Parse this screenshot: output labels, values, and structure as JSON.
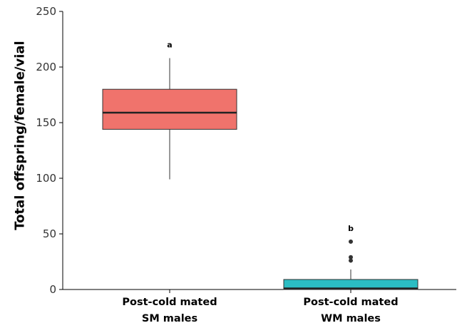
{
  "chart_data": {
    "type": "box",
    "ylabel": "Total offspring/female/vial",
    "xlabel": "",
    "ylim": [
      0,
      250
    ],
    "yticks": [
      0,
      50,
      100,
      150,
      200,
      250
    ],
    "grid": false,
    "legend": "none",
    "groups": [
      {
        "category_lines": [
          "Post-cold mated",
          "SM males"
        ],
        "whisker_low": 99,
        "q1": 144,
        "median": 159,
        "q3": 180,
        "whisker_high": 208,
        "outliers": [],
        "sig_label": "a",
        "color": "#F0736C"
      },
      {
        "category_lines": [
          "Post-cold mated",
          "WM males"
        ],
        "whisker_low": 0,
        "q1": 0,
        "median": 1,
        "q3": 9,
        "whisker_high": 18,
        "outliers": [
          26,
          29,
          43
        ],
        "sig_label": "b",
        "color": "#2BBDC3"
      }
    ]
  }
}
